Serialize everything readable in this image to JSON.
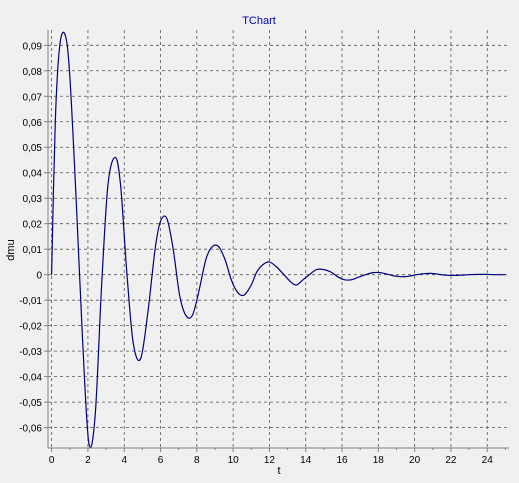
{
  "chart_data": {
    "type": "line",
    "title": "TChart",
    "xlabel": "t",
    "ylabel": "dmu",
    "xlim": [
      -0.2,
      25.2
    ],
    "ylim": [
      -0.068,
      0.096
    ],
    "x_ticks": [
      0,
      2,
      4,
      6,
      8,
      10,
      12,
      14,
      16,
      18,
      20,
      22,
      24
    ],
    "x_tick_labels": [
      "0",
      "2",
      "4",
      "6",
      "8",
      "10",
      "12",
      "14",
      "16",
      "18",
      "20",
      "22",
      "24"
    ],
    "y_ticks": [
      0.09,
      0.08,
      0.07,
      0.06,
      0.05,
      0.04,
      0.03,
      0.02,
      0.01,
      0,
      -0.01,
      -0.02,
      -0.03,
      -0.04,
      -0.05,
      -0.06
    ],
    "y_tick_labels": [
      "0,09",
      "0,08",
      "0,07",
      "0,06",
      "0,05",
      "0,04",
      "0,03",
      "0,02",
      "0,01",
      "0",
      "-0,01",
      "-0,02",
      "-0,03",
      "-0,04",
      "-0,05",
      "-0,06"
    ],
    "grid": true,
    "series": [
      {
        "color": "#000080",
        "x": [
          0.0,
          0.2,
          0.45,
          0.75,
          1.0,
          1.35,
          1.7,
          2.05,
          2.4,
          2.75,
          3.1,
          3.5,
          3.8,
          4.15,
          4.5,
          4.9,
          5.3,
          5.7,
          6.0,
          6.35,
          6.7,
          7.05,
          7.4,
          7.75,
          8.1,
          8.5,
          8.85,
          9.2,
          9.55,
          9.9,
          10.25,
          10.6,
          11.0,
          11.3,
          11.65,
          12.0,
          12.4,
          12.8,
          13.2,
          13.5,
          13.85,
          14.2,
          14.6,
          15.0,
          15.4,
          15.8,
          16.15,
          16.5,
          16.9,
          17.3,
          17.7,
          18.1,
          18.5,
          18.9,
          19.3,
          19.7,
          20.1,
          20.5,
          20.9,
          21.3,
          21.7,
          22.1,
          22.5,
          23.0,
          23.5,
          24.0,
          24.5,
          25.0
        ],
        "y": [
          0.0,
          0.06,
          0.09,
          0.094,
          0.078,
          0.03,
          -0.025,
          -0.066,
          -0.055,
          -0.005,
          0.035,
          0.046,
          0.035,
          0.0,
          -0.027,
          -0.033,
          -0.015,
          0.01,
          0.021,
          0.022,
          0.01,
          -0.008,
          -0.016,
          -0.016,
          -0.007,
          0.006,
          0.011,
          0.011,
          0.006,
          -0.002,
          -0.007,
          -0.008,
          -0.004,
          0.001,
          0.004,
          0.005,
          0.003,
          0.0,
          -0.003,
          -0.004,
          -0.002,
          0.0,
          0.002,
          0.002,
          0.001,
          -0.001,
          -0.002,
          -0.002,
          -0.001,
          0.0,
          0.0008,
          0.0008,
          0.0002,
          -0.0005,
          -0.0008,
          -0.0006,
          0.0,
          0.0004,
          0.0005,
          0.0002,
          -0.0002,
          -0.0003,
          -0.0002,
          0.0,
          0.0001,
          0.0001,
          0.0,
          0.0
        ]
      }
    ]
  }
}
